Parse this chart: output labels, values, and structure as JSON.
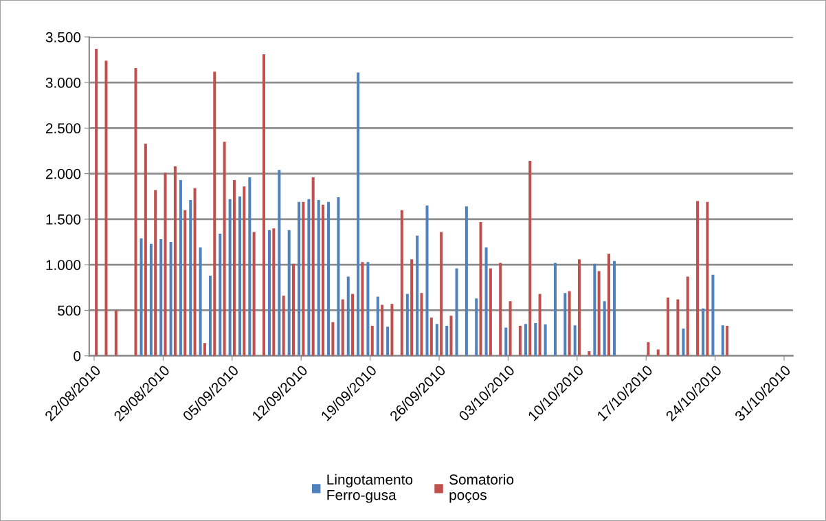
{
  "chart_data": {
    "type": "bar",
    "categories": [
      "22/08/2010",
      null,
      null,
      null,
      null,
      null,
      null,
      "29/08/2010",
      null,
      null,
      null,
      null,
      null,
      null,
      "05/09/2010",
      null,
      null,
      null,
      null,
      null,
      null,
      "12/09/2010",
      null,
      null,
      null,
      null,
      null,
      null,
      "19/09/2010",
      null,
      null,
      null,
      null,
      null,
      null,
      "26/09/2010",
      null,
      null,
      null,
      null,
      null,
      null,
      "03/10/2010",
      null,
      null,
      null,
      null,
      null,
      null,
      "10/10/2010",
      null,
      null,
      null,
      null,
      null,
      null,
      "17/10/2010",
      null,
      null,
      null,
      null,
      null,
      null,
      "24/10/2010",
      null,
      null,
      null,
      null,
      null,
      null,
      "31/10/2010"
    ],
    "series": [
      {
        "name": "Lingotamento Ferro-gusa",
        "color": "#4f81bd",
        "values": [
          0,
          0,
          0,
          0,
          0,
          1290,
          1230,
          1280,
          1250,
          1930,
          1710,
          1190,
          880,
          1340,
          1720,
          1750,
          1960,
          0,
          1380,
          2040,
          1380,
          1690,
          1720,
          1710,
          1690,
          1740,
          870,
          3110,
          1030,
          650,
          320,
          0,
          680,
          1320,
          1650,
          350,
          330,
          960,
          1640,
          630,
          1190,
          0,
          310,
          0,
          350,
          360,
          345,
          1020,
          690,
          335,
          0,
          1010,
          600,
          1040,
          0,
          0,
          0,
          0,
          0,
          0,
          300,
          0,
          520,
          890,
          335,
          0,
          0,
          0,
          0,
          0,
          0
        ]
      },
      {
        "name": "Somatorio poços",
        "color": "#c0504d",
        "values": [
          3370,
          3240,
          500,
          0,
          3160,
          2330,
          1820,
          2010,
          2080,
          1600,
          1840,
          140,
          3120,
          2350,
          1930,
          1860,
          1360,
          3310,
          1400,
          660,
          1010,
          1690,
          1960,
          1660,
          370,
          620,
          680,
          1030,
          330,
          560,
          570,
          1600,
          1060,
          690,
          420,
          1360,
          440,
          0,
          0,
          1470,
          960,
          1020,
          600,
          330,
          2140,
          680,
          0,
          0,
          710,
          1060,
          50,
          930,
          1120,
          0,
          0,
          0,
          150,
          70,
          640,
          620,
          870,
          1700,
          1690,
          0,
          330,
          0,
          0,
          0,
          0,
          0,
          0
        ]
      }
    ],
    "ylim": [
      0,
      3500
    ],
    "yticks": [
      0,
      500,
      {
        "value": 1000,
        "label": "1.000"
      },
      {
        "value": 1500,
        "label": "1.500"
      },
      {
        "value": 2000,
        "label": "2.000"
      },
      {
        "value": 2500,
        "label": "2.500"
      },
      {
        "value": 3000,
        "label": "3.000"
      },
      {
        "value": 3500,
        "label": "3.500"
      }
    ],
    "grid": "y",
    "legend": "bottom"
  }
}
